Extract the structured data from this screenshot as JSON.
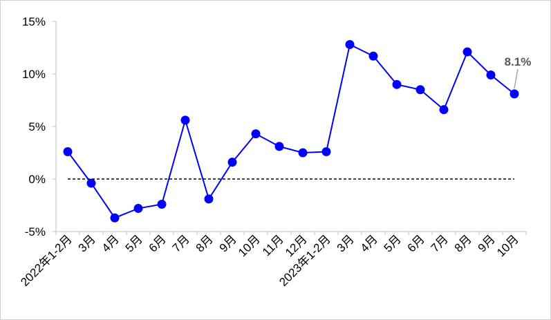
{
  "chart_data": {
    "type": "line",
    "categories": [
      "2022年1-2月",
      "3月",
      "4月",
      "5月",
      "6月",
      "7月",
      "8月",
      "9月",
      "10月",
      "11月",
      "12月",
      "2023年1-2月",
      "3月",
      "4月",
      "5月",
      "6月",
      "7月",
      "8月",
      "9月",
      "10月"
    ],
    "series": [
      {
        "values": [
          2.6,
          -0.4,
          -3.7,
          -2.8,
          -2.4,
          5.6,
          -1.9,
          1.6,
          4.3,
          3.1,
          2.5,
          2.6,
          12.8,
          11.7,
          9.0,
          8.5,
          6.6,
          12.1,
          9.9,
          8.1
        ]
      }
    ],
    "yticks": [
      "15%",
      "10%",
      "5%",
      "0%",
      "-5%"
    ],
    "ylim": [
      -5,
      15
    ],
    "reference_line": 0,
    "data_labels": [
      {
        "index": 19,
        "text": "8.1%"
      }
    ],
    "grid": false,
    "colors": {
      "series": "#0000ff",
      "marker": "#0000ff",
      "reference_line": "#000000",
      "axis": "#bfbfbf",
      "label": "#595959"
    }
  }
}
